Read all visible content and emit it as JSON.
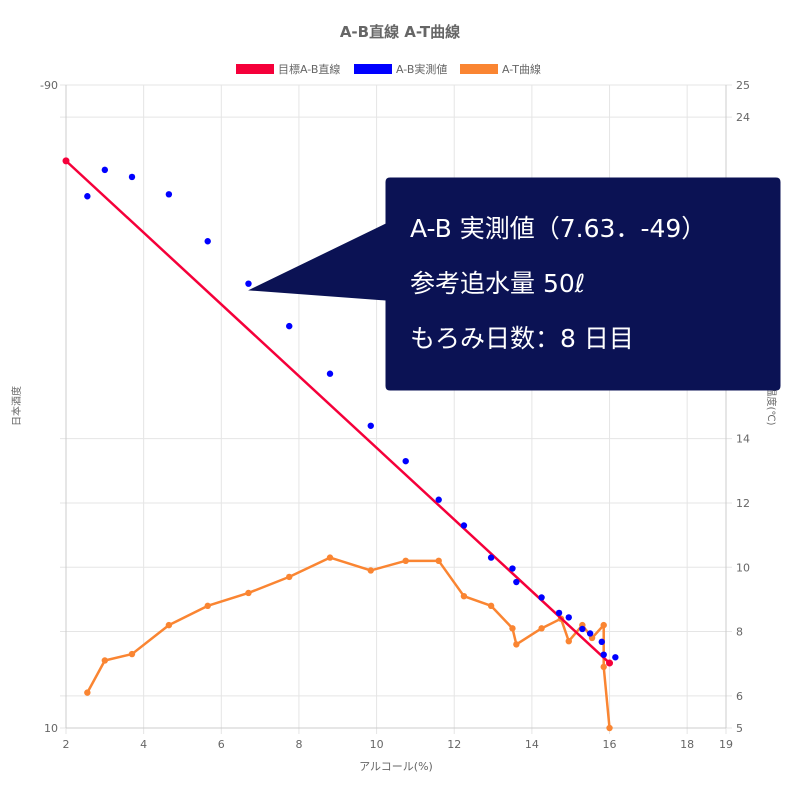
{
  "chart_data": {
    "type": "line",
    "title": "A-B直線 A-T曲線",
    "xlabel": "アルコール(%)",
    "ylabel_left": "日本酒度",
    "ylabel_right": "温度(℃)",
    "xlim": [
      2,
      19
    ],
    "x_ticks": [
      2,
      4,
      6,
      8,
      10,
      12,
      14,
      16,
      18,
      19
    ],
    "ylim_left": [
      -90,
      10
    ],
    "y_left_ticks": [
      -90,
      10
    ],
    "ylim_right": [
      5,
      25
    ],
    "y_right_ticks": [
      5,
      6,
      8,
      10,
      12,
      14,
      24,
      25
    ],
    "grid": true,
    "legend_position": "top",
    "series": [
      {
        "name": "目標A-B直線",
        "color": "#f5003a",
        "axis": "left",
        "style": "line",
        "points": [
          [
            2.0,
            -78.2
          ],
          [
            16.0,
            -0.1
          ]
        ]
      },
      {
        "name": "A-B実測値",
        "color": "#0000ff",
        "axis": "left",
        "style": "scatter",
        "points": [
          [
            2.55,
            -72.7
          ],
          [
            3.0,
            -76.8
          ],
          [
            3.7,
            -75.7
          ],
          [
            4.65,
            -73.0
          ],
          [
            5.65,
            -65.7
          ],
          [
            6.7,
            -59.1
          ],
          [
            7.75,
            -52.5
          ],
          [
            8.8,
            -45.1
          ],
          [
            9.85,
            -37.0
          ],
          [
            10.75,
            -31.5
          ],
          [
            11.6,
            -25.5
          ],
          [
            12.25,
            -21.5
          ],
          [
            12.95,
            -16.5
          ],
          [
            13.5,
            -14.8
          ],
          [
            13.6,
            -12.7
          ],
          [
            14.25,
            -10.3
          ],
          [
            14.7,
            -7.9
          ],
          [
            14.95,
            -7.2
          ],
          [
            15.3,
            -5.4
          ],
          [
            15.5,
            -4.7
          ],
          [
            15.8,
            -3.4
          ],
          [
            15.85,
            -1.4
          ],
          [
            16.15,
            -1.0
          ]
        ]
      },
      {
        "name": "A-T曲線",
        "color": "#fa8532",
        "axis": "right",
        "style": "line",
        "points": [
          [
            2.55,
            6.1
          ],
          [
            3.0,
            7.1
          ],
          [
            3.7,
            7.3
          ],
          [
            4.65,
            8.2
          ],
          [
            5.65,
            8.8
          ],
          [
            6.7,
            9.2
          ],
          [
            7.75,
            9.7
          ],
          [
            8.8,
            10.3
          ],
          [
            9.85,
            9.9
          ],
          [
            10.75,
            10.2
          ],
          [
            11.6,
            10.2
          ],
          [
            12.25,
            9.1
          ],
          [
            12.95,
            8.8
          ],
          [
            13.5,
            8.1
          ],
          [
            13.6,
            7.6
          ],
          [
            14.25,
            8.1
          ],
          [
            14.75,
            8.4
          ],
          [
            14.95,
            7.7
          ],
          [
            15.3,
            8.2
          ],
          [
            15.55,
            7.8
          ],
          [
            15.85,
            8.2
          ],
          [
            15.85,
            6.9
          ],
          [
            16.0,
            5.0
          ]
        ]
      }
    ]
  },
  "callout": {
    "line1": "A-B 実測値（7.63．-49）",
    "line2": "参考追水量 50ℓ",
    "line3": "もろみ日数：8 日目"
  }
}
